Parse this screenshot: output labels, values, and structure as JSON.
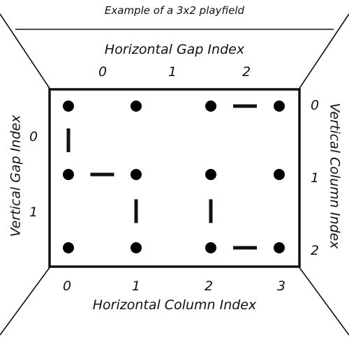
{
  "title": "Example of a 3x2 playfield",
  "horizontal_gap_label": "Horizontal Gap Index",
  "horizontal_column_label": "Horizontal Column Index",
  "vertical_gap_label": "Vertical Gap Index",
  "vertical_column_label": "Vertical Column Index",
  "horizontal_gap_indices": [
    "0",
    "1",
    "2"
  ],
  "horizontal_column_indices": [
    "0",
    "1",
    "2",
    "3"
  ],
  "vertical_gap_indices": [
    "0",
    "1"
  ],
  "vertical_column_indices": [
    "0",
    "1",
    "2"
  ],
  "grid": {
    "columns": 4,
    "rows": 3
  },
  "horizontal_segments": [
    {
      "row": 0,
      "gap": 2
    },
    {
      "row": 1,
      "gap": 0
    },
    {
      "row": 2,
      "gap": 2
    }
  ],
  "vertical_segments": [
    {
      "column": 0,
      "gap": 0
    },
    {
      "column": 1,
      "gap": 1
    },
    {
      "column": 2,
      "gap": 1
    }
  ],
  "colors": {
    "line": "#111111",
    "dot": "#000000",
    "background": "#ffffff"
  }
}
